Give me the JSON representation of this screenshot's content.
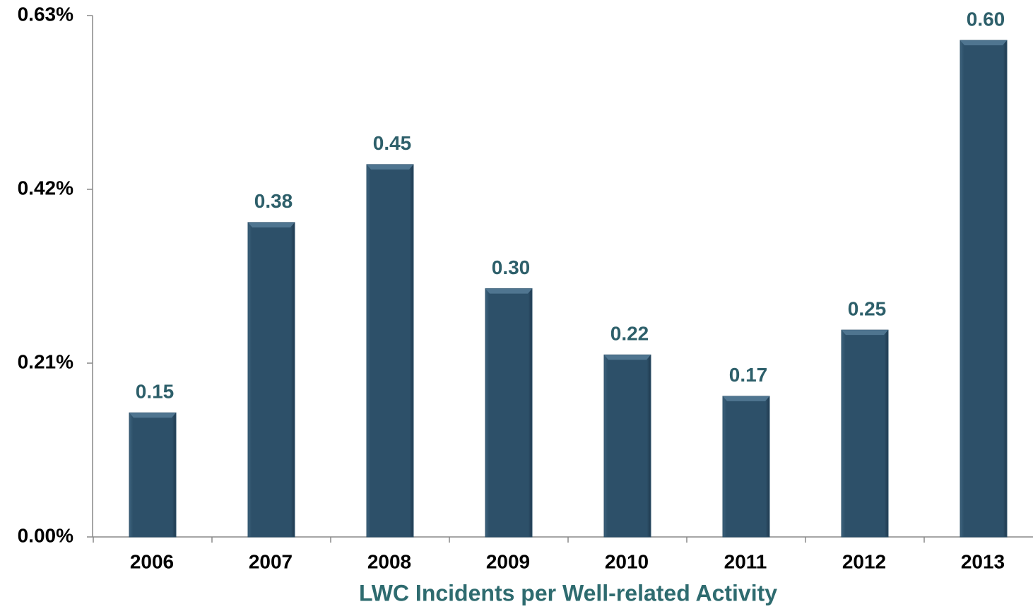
{
  "chart_data": {
    "type": "bar",
    "x_label": "LWC Incidents per Well-related Activity",
    "categories": [
      "2006",
      "2007",
      "2008",
      "2009",
      "2010",
      "2011",
      "2012",
      "2013"
    ],
    "values": [
      0.15,
      0.38,
      0.45,
      0.3,
      0.22,
      0.17,
      0.25,
      0.6
    ],
    "value_labels": [
      "0.15",
      "0.38",
      "0.45",
      "0.30",
      "0.22",
      "0.17",
      "0.25",
      "0.60"
    ],
    "color": "#2d5069",
    "ylim": [
      0,
      0.63
    ],
    "yticks": [
      {
        "value": 0,
        "label": "0.00%"
      },
      {
        "value": 0.21,
        "label": "0.21%"
      },
      {
        "value": 0.42,
        "label": "0.42%"
      },
      {
        "value": 0.63,
        "label": "0.63%"
      }
    ],
    "grid": false
  }
}
